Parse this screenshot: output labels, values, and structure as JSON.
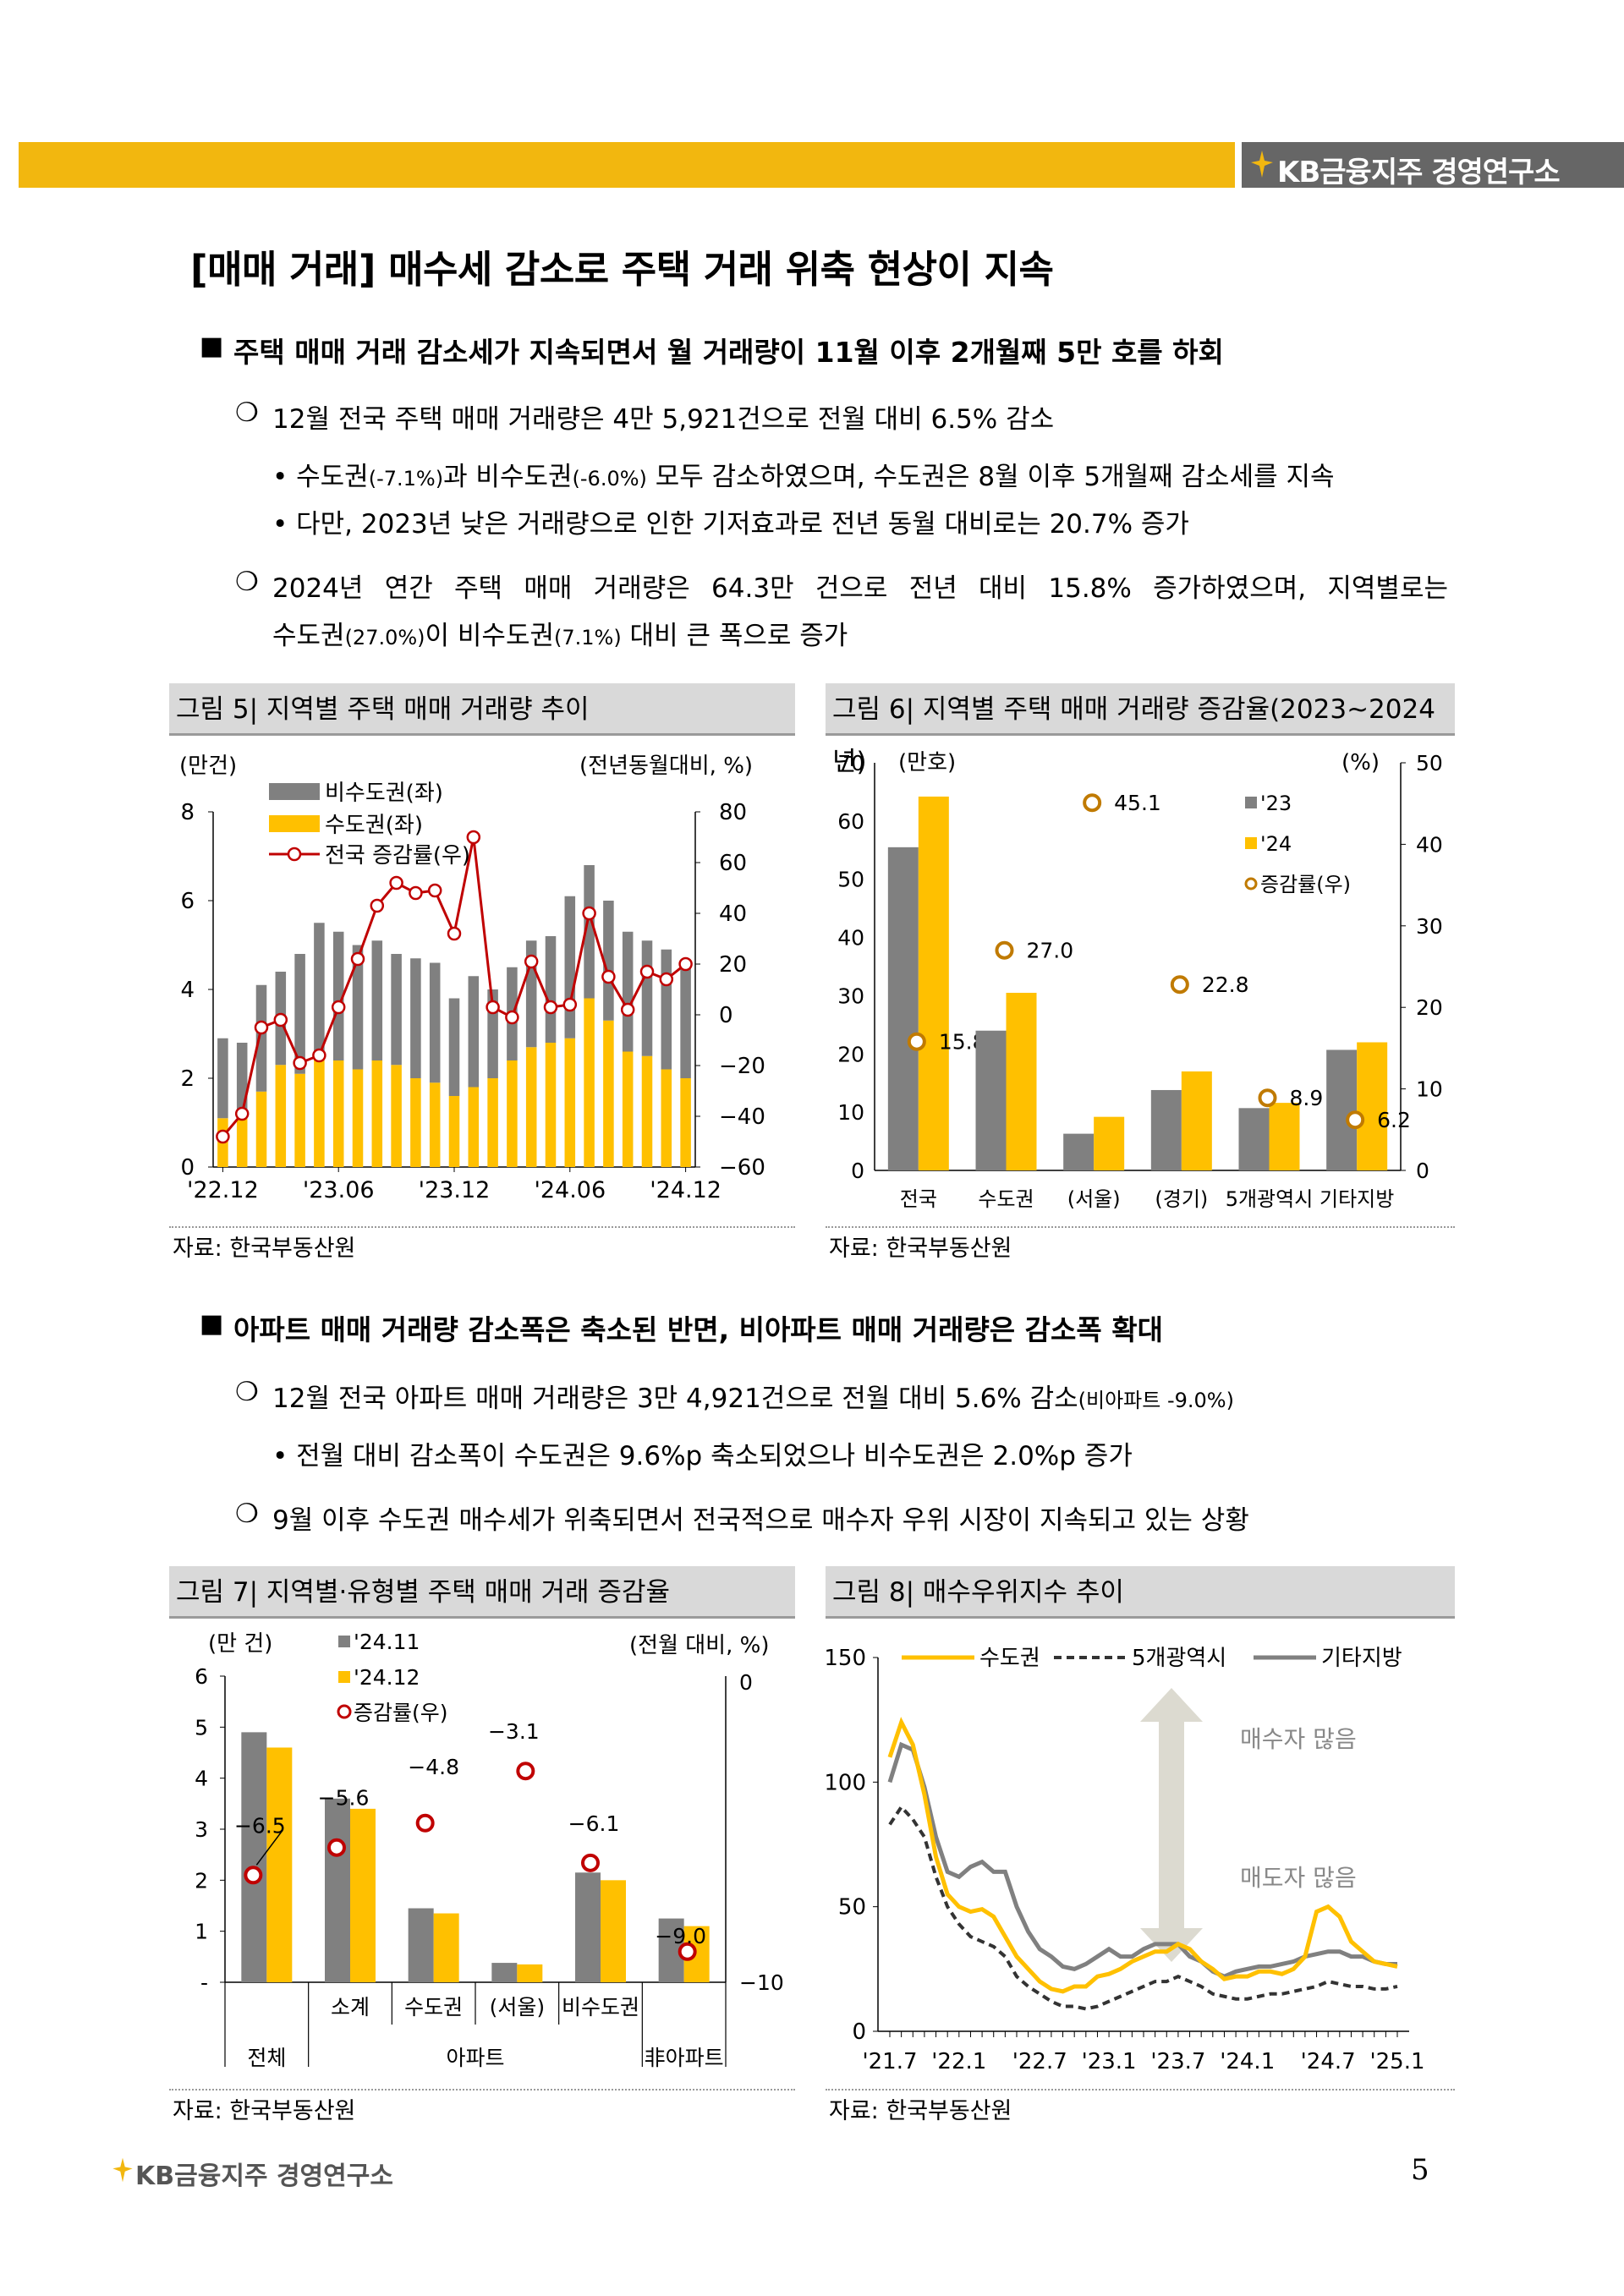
{
  "header": {
    "brand": "KB금융지주 경영연구소"
  },
  "title": "[매매 거래] 매수세 감소로 주택 거래 위축 현상이 지속",
  "section1": {
    "heading": "주택 매매 거래 감소세가 지속되면서 월 거래량이 11월 이후 2개월째 5만 호를 하회",
    "p1": "12월 전국 주택 매매 거래량은 4만 5,921건으로 전월 대비 6.5% 감소",
    "b1_a": "• 수도권",
    "b1_b": "(-7.1%)",
    "b1_c": "과 비수도권",
    "b1_d": "(-6.0%)",
    "b1_e": " 모두 감소하였으며, 수도권은 8월 이후 5개월째 감소세를 지속",
    "b2": "• 다만, 2023년 낮은 거래량으로 인한 기저효과로 전년 동월 대비로는 20.7% 증가",
    "p2_line1": "2024년 연간 주택 매매 거래량은 64.3만 건으로 전년 대비 15.8% 증가하였으며, 지역별로는",
    "p2_a": "수도권",
    "p2_b": "(27.0%)",
    "p2_c": "이 비수도권",
    "p2_d": "(7.1%)",
    "p2_e": " 대비 큰 폭으로 증가"
  },
  "section2": {
    "heading": "아파트 매매 거래량 감소폭은 축소된 반면, 비아파트 매매 거래량은 감소폭 확대",
    "p1_a": "12월 전국 아파트 매매 거래량은 3만 4,921건으로 전월 대비 5.6% 감소",
    "p1_b": "(비아파트 -9.0%)",
    "b1": "• 전월 대비 감소폭이 수도권은 9.6%p 축소되었으나 비수도권은 2.0%p 증가",
    "p2": "9월 이후 수도권 매수세가 위축되면서 전국적으로 매수자 우위 시장이 지속되고 있는 상황"
  },
  "figures": {
    "fig5": {
      "title": "그림 5| 지역별 주택 매매 거래량 추이",
      "source": "자료: 한국부동산원"
    },
    "fig6": {
      "title": "그림 6| 지역별 주택 매매 거래량 증감율(2023~2024년)",
      "source": "자료: 한국부동산원"
    },
    "fig7": {
      "title": "그림 7| 지역별·유형별 주택 매매 거래 증감율",
      "source": "자료: 한국부동산원"
    },
    "fig8": {
      "title": "그림 8| 매수우위지수 추이",
      "source": "자료: 한국부동산원"
    }
  },
  "page_number": "5",
  "colors": {
    "accent": "#f2b70f",
    "yellow": "#ffc000",
    "gray": "#808080",
    "red": "#c00000"
  },
  "chart_data": [
    {
      "id": "fig5",
      "type": "bar",
      "stacked": true,
      "units_left": "(만건)",
      "units_right": "(전년동월대비, %)",
      "x_tick_labels": [
        "'22.12",
        "'23.06",
        "'23.12",
        "'24.06",
        "'24.12"
      ],
      "ylim_left": [
        0,
        8
      ],
      "yticks_left": [
        "0",
        "2",
        "4",
        "6",
        "8"
      ],
      "ylim_right": [
        -60,
        80
      ],
      "yticks_right": [
        "−60",
        "−40",
        "−20",
        "0",
        "20",
        "40",
        "60",
        "80"
      ],
      "categories": [
        "'22.12",
        "'23.01",
        "'23.02",
        "'23.03",
        "'23.04",
        "'23.05",
        "'23.06",
        "'23.07",
        "'23.08",
        "'23.09",
        "'23.10",
        "'23.11",
        "'23.12",
        "'24.01",
        "'24.02",
        "'24.03",
        "'24.04",
        "'24.05",
        "'24.06",
        "'24.07",
        "'24.08",
        "'24.09",
        "'24.10",
        "'24.11",
        "'24.12"
      ],
      "series": [
        {
          "name": "수도권(좌)",
          "role": "bar_bottom",
          "values": [
            1.1,
            1.3,
            1.7,
            2.3,
            2.1,
            2.6,
            2.4,
            2.2,
            2.4,
            2.3,
            2.0,
            1.9,
            1.6,
            1.8,
            2.0,
            2.4,
            2.7,
            2.8,
            2.9,
            3.8,
            3.3,
            2.6,
            2.5,
            2.2,
            2.0
          ]
        },
        {
          "name": "비수도권(좌)",
          "role": "bar_top",
          "values": [
            1.8,
            1.5,
            2.4,
            2.1,
            2.7,
            2.9,
            2.9,
            2.8,
            2.7,
            2.5,
            2.7,
            2.7,
            2.2,
            2.5,
            2.0,
            2.1,
            2.4,
            2.4,
            3.2,
            3.0,
            2.7,
            2.7,
            2.6,
            2.7,
            2.6
          ]
        },
        {
          "name": "전국 증감률(우)",
          "role": "line",
          "values": [
            -48,
            -39,
            -5,
            -2,
            -19,
            -16,
            3,
            22,
            43,
            52,
            48,
            49,
            32,
            70,
            3,
            -1,
            21,
            3,
            4,
            40,
            15,
            2,
            17,
            14,
            20
          ]
        }
      ]
    },
    {
      "id": "fig6",
      "type": "bar",
      "units_left": "(만호)",
      "units_right": "(%)",
      "ylim_left": [
        0,
        70
      ],
      "yticks_left": [
        "0",
        "10",
        "20",
        "30",
        "40",
        "50",
        "60",
        "70"
      ],
      "ylim_right": [
        0,
        50
      ],
      "yticks_right": [
        "0",
        "10",
        "20",
        "30",
        "40",
        "50"
      ],
      "categories": [
        "전국",
        "수도권",
        "(서울)",
        "(경기)",
        "5개광역시",
        "기타지방"
      ],
      "series": [
        {
          "name": "'23",
          "values": [
            55.5,
            24.0,
            6.3,
            13.8,
            10.7,
            20.7
          ]
        },
        {
          "name": "'24",
          "values": [
            64.2,
            30.5,
            9.2,
            17.0,
            11.6,
            22.0
          ]
        },
        {
          "name": "증감률(우)",
          "values": [
            15.8,
            27.0,
            45.1,
            22.8,
            8.9,
            6.2
          ],
          "labels": [
            "15.8",
            "27.0",
            "45.1",
            "22.8",
            "8.9",
            "6.2"
          ]
        }
      ]
    },
    {
      "id": "fig7",
      "type": "bar",
      "units_left": "(만 건)",
      "units_right": "(전월 대비, %)",
      "ylim_left": [
        0,
        6
      ],
      "yticks_left": [
        "-",
        "1",
        "2",
        "3",
        "4",
        "5",
        "6"
      ],
      "ylim_right": [
        -10,
        0
      ],
      "yticks_right": [
        "−10",
        "0"
      ],
      "categories": [
        "전체",
        "소계",
        "수도권",
        "(서울)",
        "비수도권",
        "非아파트"
      ],
      "group_labels": [
        "전체",
        "아파트",
        "非아파트"
      ],
      "series": [
        {
          "name": "'24.11",
          "values": [
            4.9,
            3.6,
            1.45,
            0.38,
            2.15,
            1.25
          ]
        },
        {
          "name": "'24.12",
          "values": [
            4.6,
            3.4,
            1.35,
            0.35,
            2.0,
            1.1
          ]
        },
        {
          "name": "증감률(우)",
          "values": [
            -6.5,
            -5.6,
            -4.8,
            -3.1,
            -6.1,
            -9.0
          ],
          "labels": [
            "−6.5",
            "−5.6",
            "−4.8",
            "−3.1",
            "−6.1",
            "−9.0"
          ]
        }
      ]
    },
    {
      "id": "fig8",
      "type": "line",
      "ylim": [
        0,
        150
      ],
      "yticks": [
        "0",
        "50",
        "100",
        "150"
      ],
      "x_tick_labels": [
        "'21.7",
        "'22.1",
        "'22.7",
        "'23.1",
        "'23.7",
        "'24.1",
        "'24.7",
        "'25.1"
      ],
      "annotations": [
        "매수자 많음",
        "매도자 많음"
      ],
      "series": [
        {
          "name": "수도권",
          "values": [
            110,
            124,
            115,
            95,
            70,
            55,
            50,
            48,
            49,
            46,
            38,
            30,
            25,
            20,
            17,
            16,
            18,
            18,
            22,
            23,
            25,
            28,
            30,
            32,
            32,
            35,
            33,
            28,
            25,
            21,
            22,
            22,
            24,
            24,
            23,
            25,
            30,
            48,
            50,
            46,
            36,
            32,
            28,
            27,
            26
          ]
        },
        {
          "name": "5개광역시",
          "values": [
            83,
            90,
            85,
            78,
            62,
            50,
            43,
            38,
            36,
            34,
            30,
            22,
            18,
            15,
            12,
            10,
            10,
            9,
            10,
            12,
            14,
            16,
            18,
            20,
            20,
            22,
            20,
            18,
            15,
            14,
            13,
            13,
            14,
            15,
            15,
            16,
            17,
            18,
            20,
            19,
            18,
            18,
            17,
            17,
            18
          ]
        },
        {
          "name": "기타지방",
          "values": [
            100,
            115,
            113,
            98,
            78,
            64,
            62,
            66,
            68,
            64,
            64,
            50,
            40,
            33,
            30,
            26,
            25,
            27,
            30,
            33,
            30,
            30,
            33,
            35,
            35,
            35,
            30,
            28,
            24,
            22,
            24,
            25,
            26,
            26,
            27,
            28,
            30,
            31,
            32,
            32,
            30,
            30,
            28,
            27,
            27
          ]
        }
      ]
    }
  ]
}
